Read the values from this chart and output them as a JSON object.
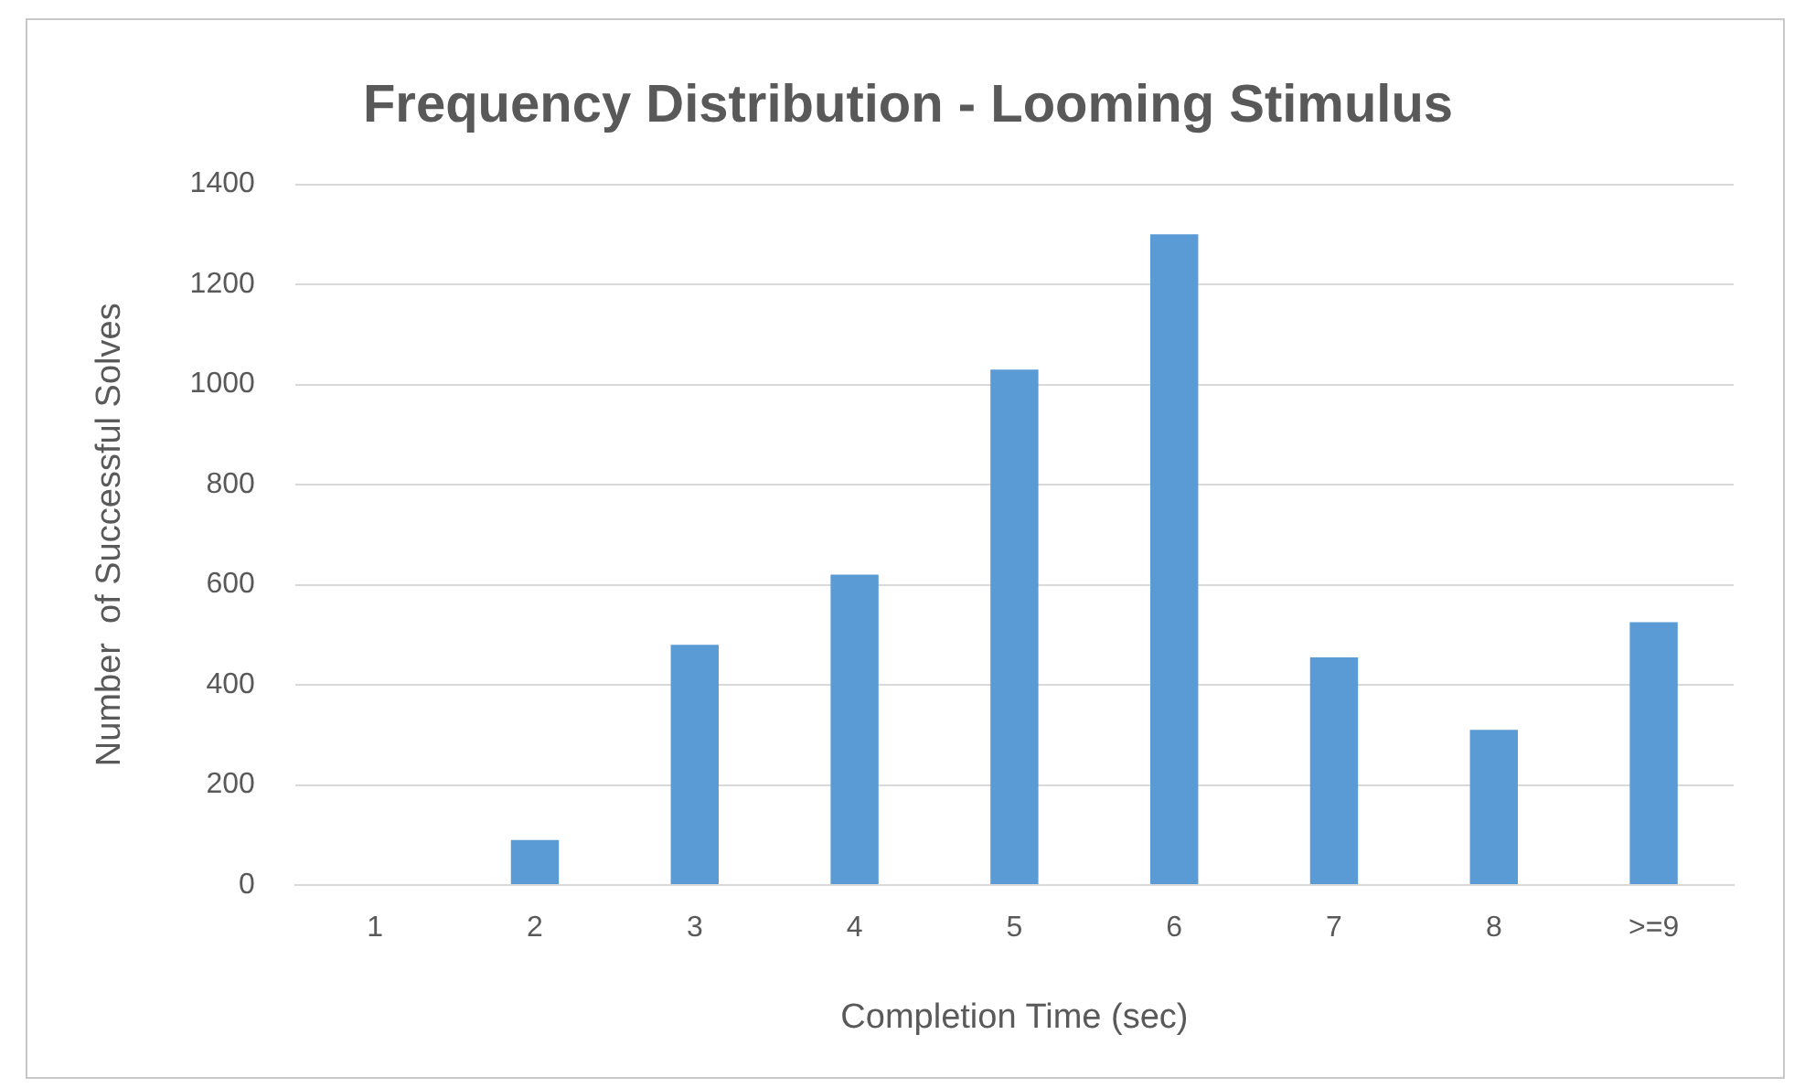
{
  "chart_data": {
    "type": "bar",
    "title": "Frequency Distribution - Looming Stimulus",
    "xlabel": "Completion Time (sec)",
    "ylabel": "Number  of Successful Solves",
    "categories": [
      "1",
      "2",
      "3",
      "4",
      "5",
      "6",
      "7",
      "8",
      ">=9"
    ],
    "values": [
      0,
      90,
      480,
      620,
      1030,
      1300,
      455,
      310,
      525
    ],
    "color": "#5b9bd5",
    "ylim": [
      0,
      1400
    ],
    "yticks": [
      0,
      200,
      400,
      600,
      800,
      1000,
      1200,
      1400
    ],
    "grid": "y"
  }
}
